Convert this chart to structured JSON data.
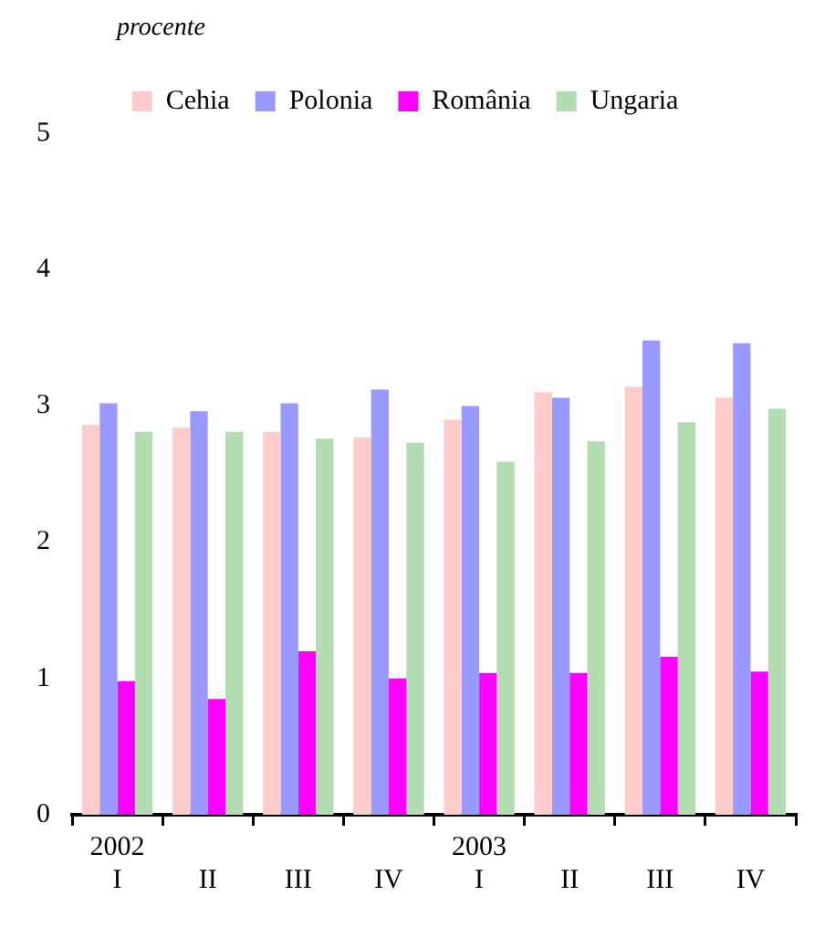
{
  "chart_data": {
    "type": "bar",
    "ylabel": "procente",
    "categories": [
      "I",
      "II",
      "III",
      "IV",
      "I",
      "II",
      "III",
      "IV"
    ],
    "annotations": [
      "2002",
      "2003"
    ],
    "series": [
      {
        "name": "Cehia",
        "color": "#ffcccc",
        "values": [
          2.86,
          2.84,
          2.81,
          2.77,
          2.9,
          3.1,
          3.14,
          3.06
        ]
      },
      {
        "name": "Polonia",
        "color": "#9999ff",
        "values": [
          3.02,
          2.96,
          3.02,
          3.12,
          3.0,
          3.06,
          3.48,
          3.46
        ]
      },
      {
        "name": "România",
        "color": "#ff00ff",
        "values": [
          0.98,
          0.85,
          1.2,
          1.0,
          1.04,
          1.04,
          1.16,
          1.05
        ]
      },
      {
        "name": "Ungaria",
        "color": "#b3dcb3",
        "values": [
          2.81,
          2.81,
          2.76,
          2.73,
          2.59,
          2.74,
          2.88,
          2.98
        ]
      }
    ],
    "ylim": [
      0,
      5
    ],
    "yticks": [
      0,
      1,
      2,
      3,
      4,
      5
    ],
    "grid": false,
    "legend": "top"
  }
}
